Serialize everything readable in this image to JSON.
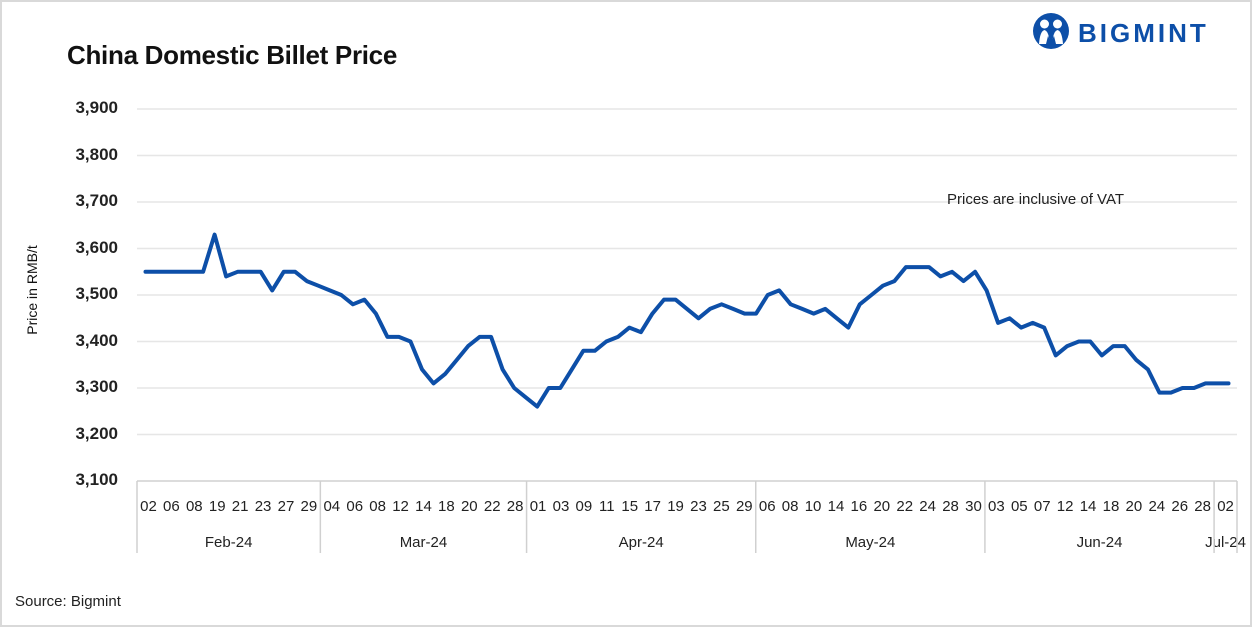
{
  "header": {
    "title": "China Domestic Billet Price",
    "logo_text": "BIGMINT",
    "logo_icon": "bigmint-people-icon"
  },
  "annotation": "Prices are inclusive of VAT",
  "footer": {
    "source": "Source: Bigmint"
  },
  "colors": {
    "line": "#0d4fa8",
    "grid": "#e6e6e6",
    "brand": "#0d4fa8"
  },
  "chart_data": {
    "type": "line",
    "title": "China Domestic Billet Price",
    "xlabel": "",
    "ylabel": "Price in RMB/t",
    "ylim": [
      3100,
      3900
    ],
    "yticks": [
      3100,
      3200,
      3300,
      3400,
      3500,
      3600,
      3700,
      3800,
      3900
    ],
    "ytick_labels": [
      "3,100",
      "3,200",
      "3,300",
      "3,400",
      "3,500",
      "3,600",
      "3,700",
      "3,800",
      "3,900"
    ],
    "grid": true,
    "legend": "none",
    "annotations": [
      "Prices are inclusive of VAT"
    ],
    "x_tick_labels": [
      "02",
      "06",
      "08",
      "19",
      "21",
      "23",
      "27",
      "29",
      "04",
      "06",
      "08",
      "12",
      "14",
      "18",
      "20",
      "22",
      "28",
      "01",
      "03",
      "09",
      "11",
      "15",
      "17",
      "19",
      "23",
      "25",
      "29",
      "06",
      "08",
      "10",
      "14",
      "16",
      "20",
      "22",
      "24",
      "28",
      "30",
      "03",
      "05",
      "07",
      "12",
      "14",
      "18",
      "20",
      "24",
      "26",
      "28",
      "02"
    ],
    "months": [
      {
        "label": "Feb-24",
        "start_tick": 0,
        "end_tick": 7
      },
      {
        "label": "Mar-24",
        "start_tick": 8,
        "end_tick": 16
      },
      {
        "label": "Apr-24",
        "start_tick": 17,
        "end_tick": 26
      },
      {
        "label": "May-24",
        "start_tick": 27,
        "end_tick": 36
      },
      {
        "label": "Jun-24",
        "start_tick": 37,
        "end_tick": 46
      },
      {
        "label": "Jul-24",
        "start_tick": 47,
        "end_tick": 47
      }
    ],
    "series": [
      {
        "name": "China Domestic Billet Price",
        "values": [
          3550,
          3550,
          3550,
          3550,
          3550,
          3550,
          3630,
          3540,
          3550,
          3550,
          3550,
          3510,
          3550,
          3550,
          3530,
          3520,
          3510,
          3500,
          3480,
          3490,
          3460,
          3410,
          3410,
          3400,
          3340,
          3310,
          3330,
          3360,
          3390,
          3410,
          3410,
          3340,
          3300,
          3280,
          3260,
          3300,
          3300,
          3340,
          3380,
          3380,
          3400,
          3410,
          3430,
          3420,
          3460,
          3490,
          3490,
          3470,
          3450,
          3470,
          3480,
          3470,
          3460,
          3460,
          3500,
          3510,
          3480,
          3470,
          3460,
          3470,
          3450,
          3430,
          3480,
          3500,
          3520,
          3530,
          3560,
          3560,
          3560,
          3540,
          3550,
          3530,
          3550,
          3510,
          3440,
          3450,
          3430,
          3440,
          3430,
          3370,
          3390,
          3400,
          3400,
          3370,
          3390,
          3390,
          3360,
          3340,
          3290,
          3290,
          3300,
          3300,
          3310,
          3310,
          3310
        ]
      }
    ]
  }
}
